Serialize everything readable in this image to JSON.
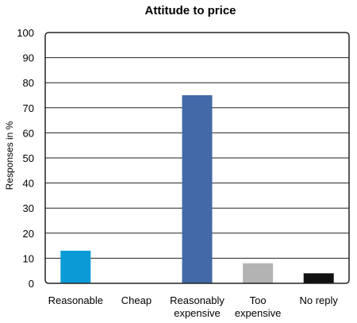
{
  "chart_data": {
    "type": "bar",
    "title": "Attitude to price",
    "xlabel": "",
    "ylabel": "Responses in %",
    "ylim": [
      0,
      100
    ],
    "yticks": [
      0,
      10,
      20,
      30,
      40,
      50,
      60,
      70,
      80,
      90,
      100
    ],
    "grid": true,
    "categories": [
      [
        "Reasonable"
      ],
      [
        "Cheap"
      ],
      [
        "Reasonably",
        "expensive"
      ],
      [
        "Too",
        "expensive"
      ],
      [
        "No reply"
      ]
    ],
    "values": [
      13,
      0,
      75,
      8,
      4
    ],
    "colors": [
      "#0a9bd6",
      "#ffffff",
      "#4369a8",
      "#b3b3b3",
      "#111111"
    ]
  }
}
